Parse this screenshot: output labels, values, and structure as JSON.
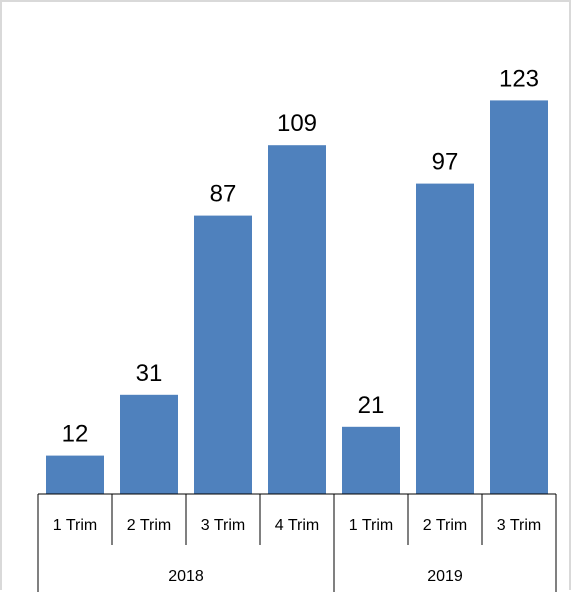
{
  "chart_data": {
    "type": "bar",
    "categories": [
      "1 Trim",
      "2 Trim",
      "3 Trim",
      "4 Trim",
      "1 Trim",
      "2 Trim",
      "3 Trim"
    ],
    "groups": [
      {
        "label": "2018",
        "categories": [
          "1 Trim",
          "2 Trim",
          "3 Trim",
          "4 Trim"
        ]
      },
      {
        "label": "2019",
        "categories": [
          "1 Trim",
          "2 Trim",
          "3 Trim"
        ]
      }
    ],
    "values": [
      12,
      31,
      87,
      109,
      21,
      97,
      123
    ],
    "data_labels": [
      "12",
      "31",
      "87",
      "109",
      "21",
      "97",
      "123"
    ],
    "ylim": [
      0,
      130
    ],
    "grid": false,
    "legend": false,
    "bar_color": "#4f81bd",
    "axis_color": "#000000"
  }
}
